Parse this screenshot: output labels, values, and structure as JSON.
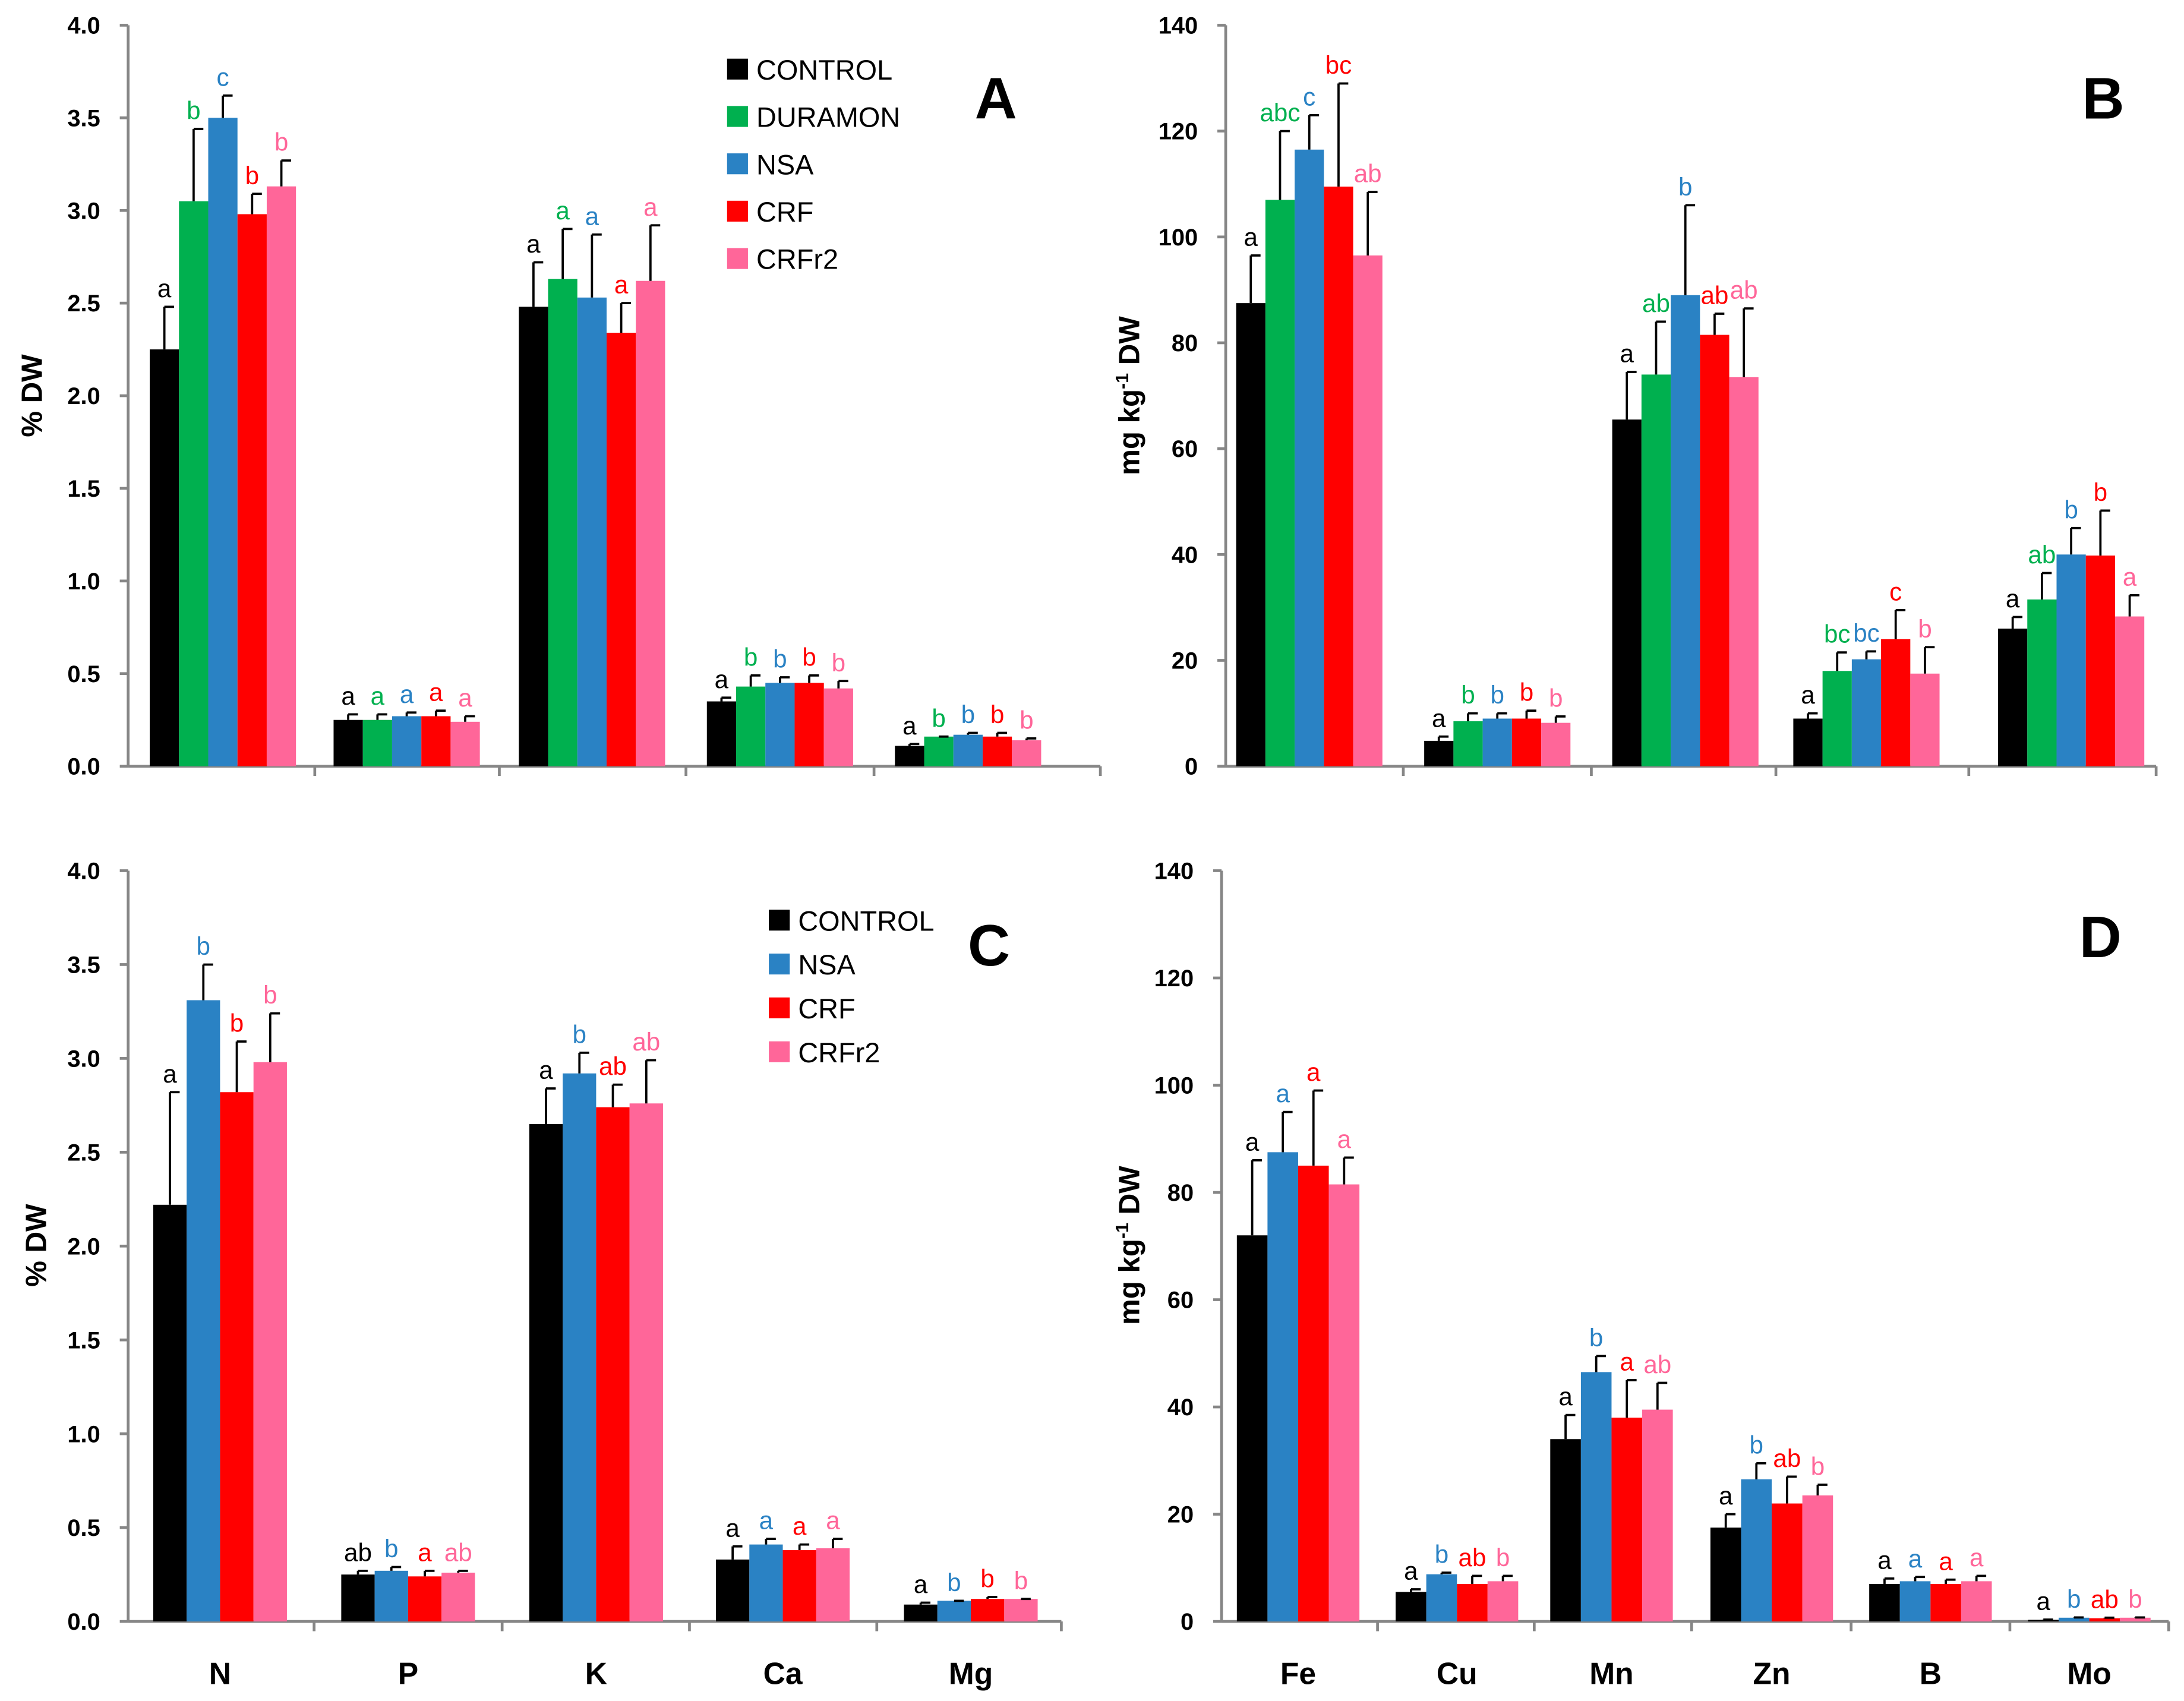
{
  "colors": {
    "CONTROL": "#000000",
    "DURAMON": "#00b04f",
    "NSA": "#2a82c4",
    "CRF": "#ff0000",
    "CRFr2": "#ff6699"
  },
  "chart_data": [
    {
      "type": "bar",
      "panel": "A",
      "ylabel": "% DW",
      "ylim": [
        0,
        4
      ],
      "yticks": [
        "0.0",
        "0.5",
        "1.0",
        "1.5",
        "2.0",
        "2.5",
        "3.0",
        "3.5",
        "4.0"
      ],
      "legend": [
        "CONTROL",
        "DURAMON",
        "NSA",
        "CRF",
        "CRFr2"
      ],
      "legend_position": "top-right",
      "groups": [
        {
          "values": [
            2.25,
            3.05,
            3.5,
            2.98,
            3.13
          ],
          "errors": [
            0.23,
            0.39,
            0.12,
            0.11,
            0.14
          ],
          "letters": [
            "a",
            "b",
            "c",
            "b",
            "b"
          ]
        },
        {
          "values": [
            0.25,
            0.25,
            0.27,
            0.27,
            0.24
          ],
          "errors": [
            0.03,
            0.03,
            0.02,
            0.03,
            0.03
          ],
          "letters": [
            "a",
            "a",
            "a",
            "a",
            "a"
          ]
        },
        {
          "values": [
            2.48,
            2.63,
            2.53,
            2.34,
            2.62
          ],
          "errors": [
            0.24,
            0.27,
            0.34,
            0.16,
            0.3
          ],
          "letters": [
            "a",
            "a",
            "a",
            "a",
            "a"
          ]
        },
        {
          "values": [
            0.35,
            0.43,
            0.45,
            0.45,
            0.42
          ],
          "errors": [
            0.02,
            0.06,
            0.03,
            0.04,
            0.04
          ],
          "letters": [
            "a",
            "b",
            "b",
            "b",
            "b"
          ]
        },
        {
          "values": [
            0.11,
            0.16,
            0.17,
            0.16,
            0.14
          ],
          "errors": [
            0.01,
            0.0,
            0.01,
            0.02,
            0.01
          ],
          "letters": [
            "a",
            "b",
            "b",
            "b",
            "b"
          ]
        }
      ]
    },
    {
      "type": "bar",
      "panel": "B",
      "ylabel": "mg kg-1 DW",
      "ylim": [
        0,
        140
      ],
      "yticks": [
        "0",
        "20",
        "40",
        "60",
        "80",
        "100",
        "120",
        "140"
      ],
      "legend": [
        "CONTROL",
        "DURAMON",
        "NSA",
        "CRF",
        "CRFr2"
      ],
      "groups": [
        {
          "values": [
            87.5,
            107,
            116.5,
            109.5,
            96.5
          ],
          "errors": [
            9,
            13,
            6.5,
            19.5,
            12
          ],
          "letters": [
            "a",
            "abc",
            "c",
            "bc",
            "ab"
          ]
        },
        {
          "values": [
            4.8,
            8.5,
            9,
            9,
            8.2
          ],
          "errors": [
            0.8,
            1.5,
            1,
            1.5,
            1.2
          ],
          "letters": [
            "a",
            "b",
            "b",
            "b",
            "b"
          ]
        },
        {
          "values": [
            65.5,
            74,
            89,
            81.5,
            73.5
          ],
          "errors": [
            9,
            10,
            17,
            4,
            13
          ],
          "letters": [
            "a",
            "ab",
            "b",
            "ab",
            "ab"
          ]
        },
        {
          "values": [
            9,
            18,
            20.2,
            24,
            17.5
          ],
          "errors": [
            1,
            3.5,
            1.5,
            5.5,
            5
          ],
          "letters": [
            "a",
            "bc",
            "bc",
            "c",
            "b"
          ]
        },
        {
          "values": [
            26,
            31.5,
            40,
            39.8,
            28.3
          ],
          "errors": [
            2.2,
            5,
            5,
            8.5,
            4
          ],
          "letters": [
            "a",
            "ab",
            "b",
            "b",
            "a"
          ]
        }
      ]
    },
    {
      "type": "bar",
      "panel": "C",
      "ylabel": "% DW",
      "ylim": [
        0,
        4
      ],
      "yticks": [
        "0.0",
        "0.5",
        "1.0",
        "1.5",
        "2.0",
        "2.5",
        "3.0",
        "3.5",
        "4.0"
      ],
      "categories": [
        "N",
        "P",
        "K",
        "Ca",
        "Mg"
      ],
      "legend": [
        "CONTROL",
        "NSA",
        "CRF",
        "CRFr2"
      ],
      "legend_position": "top-right",
      "groups": [
        {
          "values": [
            2.22,
            3.31,
            2.82,
            2.98
          ],
          "errors": [
            0.6,
            0.19,
            0.27,
            0.26
          ],
          "letters": [
            "a",
            "b",
            "b",
            "b"
          ]
        },
        {
          "values": [
            0.25,
            0.27,
            0.24,
            0.26
          ],
          "errors": [
            0.02,
            0.02,
            0.03,
            0.01
          ],
          "letters": [
            "ab",
            "b",
            "a",
            "ab"
          ]
        },
        {
          "values": [
            2.65,
            2.92,
            2.74,
            2.76
          ],
          "errors": [
            0.19,
            0.11,
            0.12,
            0.23
          ],
          "letters": [
            "a",
            "b",
            "ab",
            "ab"
          ]
        },
        {
          "values": [
            0.33,
            0.41,
            0.38,
            0.39
          ],
          "errors": [
            0.07,
            0.03,
            0.03,
            0.05
          ],
          "letters": [
            "a",
            "a",
            "a",
            "a"
          ]
        },
        {
          "values": [
            0.09,
            0.11,
            0.12,
            0.12
          ],
          "errors": [
            0.01,
            0.0,
            0.01,
            0.0
          ],
          "letters": [
            "a",
            "b",
            "b",
            "b"
          ]
        }
      ]
    },
    {
      "type": "bar",
      "panel": "D",
      "ylabel": "mg kg-1 DW",
      "ylim": [
        0,
        140
      ],
      "yticks": [
        "0",
        "20",
        "40",
        "60",
        "80",
        "100",
        "120",
        "140"
      ],
      "categories": [
        "Fe",
        "Cu",
        "Mn",
        "Zn",
        "B",
        "Mo"
      ],
      "legend": [
        "CONTROL",
        "NSA",
        "CRF",
        "CRFr2"
      ],
      "groups": [
        {
          "values": [
            72,
            87.5,
            85,
            81.5
          ],
          "errors": [
            14,
            7.5,
            14,
            5
          ],
          "letters": [
            "a",
            "a",
            "a",
            "a"
          ]
        },
        {
          "values": [
            5.5,
            8.8,
            7,
            7.5
          ],
          "errors": [
            0.5,
            0.3,
            1.5,
            1
          ],
          "letters": [
            "a",
            "b",
            "ab",
            "b"
          ]
        },
        {
          "values": [
            34,
            46.5,
            38,
            39.5
          ],
          "errors": [
            4.5,
            3,
            7,
            5
          ],
          "letters": [
            "a",
            "b",
            "a",
            "ab"
          ]
        },
        {
          "values": [
            17.5,
            26.5,
            22,
            23.5
          ],
          "errors": [
            2.5,
            3,
            5,
            2
          ],
          "letters": [
            "a",
            "b",
            "ab",
            "b"
          ]
        },
        {
          "values": [
            7,
            7.5,
            7,
            7.5
          ],
          "errors": [
            1,
            0.8,
            0.8,
            1
          ],
          "letters": [
            "a",
            "a",
            "a",
            "a"
          ]
        },
        {
          "values": [
            0.3,
            0.7,
            0.6,
            0.7
          ],
          "errors": [
            0.05,
            0.05,
            0.1,
            0.05
          ],
          "letters": [
            "a",
            "b",
            "ab",
            "b"
          ]
        }
      ]
    }
  ]
}
